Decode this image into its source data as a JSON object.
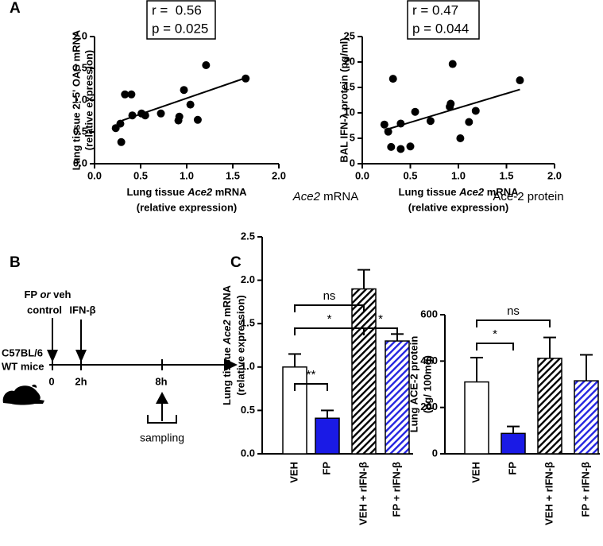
{
  "panel_labels": [
    "A",
    "B",
    "C"
  ],
  "timeline": {
    "treatment": [
      "FP ",
      "or",
      " veh"
    ],
    "treatment_line2": "control",
    "second": "IFN-β",
    "strain": "C57BL/6",
    "strain_line2": "WT mice",
    "times": [
      "0",
      "2h",
      "8h"
    ],
    "sampling": "sampling"
  },
  "chart_data": [
    {
      "type": "scatter",
      "stats": [
        "r =  0.56",
        "p = 0.025"
      ],
      "xlabel": [
        [
          "Lung tissue ",
          "Ace2",
          " mRNA"
        ],
        "(relative expression)"
      ],
      "ylabel": [
        "Lung tissue 2'-5' OAS mRNA",
        "(relative expression)"
      ],
      "x": [
        0.23,
        0.28,
        0.29,
        0.33,
        0.4,
        0.41,
        0.51,
        0.55,
        0.72,
        0.91,
        0.92,
        0.97,
        1.04,
        1.12,
        1.21,
        1.64
      ],
      "values": [
        0.56,
        0.63,
        0.34,
        1.09,
        1.09,
        0.76,
        0.79,
        0.76,
        0.79,
        0.68,
        0.74,
        1.16,
        0.93,
        0.69,
        1.55,
        1.34
      ],
      "color": "#000000",
      "trend_line": {
        "x": [
          0.3,
          1.64
        ],
        "y": [
          0.68,
          1.35
        ]
      },
      "xlim": [
        0,
        2
      ],
      "ylim": [
        0,
        2
      ],
      "xticks": [
        {
          "value": 0,
          "label": "0.0"
        },
        0.5,
        {
          "value": 1,
          "label": "1.0"
        },
        1.5,
        {
          "value": 2,
          "label": "2.0"
        }
      ],
      "yticks": [
        {
          "value": 0,
          "label": "0.0"
        },
        0.5,
        {
          "value": 1,
          "label": "1.0"
        },
        1.5,
        {
          "value": 2,
          "label": "2.0"
        }
      ]
    },
    {
      "type": "scatter",
      "stats": [
        "r = 0.47",
        "p = 0.044"
      ],
      "xlabel": [
        [
          "Lung tissue ",
          "Ace2",
          " mRNA"
        ],
        "(relative expression)"
      ],
      "ylabel": [
        "BAL IFN-λ protein (pg/ml)"
      ],
      "x": [
        0.23,
        0.27,
        0.3,
        0.32,
        0.4,
        0.4,
        0.5,
        0.55,
        0.71,
        0.91,
        0.92,
        0.94,
        1.02,
        1.11,
        1.18,
        1.64
      ],
      "values": [
        7.7,
        6.3,
        3.3,
        16.7,
        7.9,
        2.9,
        3.4,
        10.2,
        8.4,
        11.2,
        11.8,
        19.6,
        5.0,
        8.2,
        10.4,
        16.4
      ],
      "color": "#000000",
      "trend_line": {
        "x": [
          0.23,
          1.64
        ],
        "y": [
          6.6,
          14.6
        ]
      },
      "xlim": [
        0,
        2
      ],
      "ylim": [
        0,
        25
      ],
      "xticks": [
        {
          "value": 0,
          "label": "0.0"
        },
        0.5,
        {
          "value": 1,
          "label": "1.0"
        },
        1.5,
        {
          "value": 2,
          "label": "2.0"
        }
      ],
      "yticks": [
        0,
        5,
        10,
        15,
        20,
        25
      ]
    },
    {
      "type": "bar",
      "title": [
        "Ace2",
        " mRNA"
      ],
      "ylabel": [
        [
          "Lung tissue ",
          "Ace2",
          " mRNA"
        ],
        "(relative expression)"
      ],
      "categories": [
        "VEH",
        "FP",
        "VEH + rIFN-β",
        "FP + rIFN-β"
      ],
      "values": [
        1.0,
        0.41,
        1.9,
        1.3
      ],
      "errors": [
        0.15,
        0.09,
        0.22,
        0.08
      ],
      "colors": [
        "#ffffff",
        "#1a1ae6",
        "#000000",
        "#2424e0"
      ],
      "hatch": [
        false,
        false,
        true,
        true
      ],
      "annotations": [
        {
          "text": "ns",
          "between": [
            0,
            2
          ]
        },
        {
          "text": "*",
          "between": [
            0,
            2
          ]
        },
        {
          "text": "*",
          "between": [
            2,
            3
          ]
        },
        {
          "text": "**",
          "between": [
            0,
            1
          ]
        }
      ],
      "ylim": [
        0,
        2.5
      ],
      "yticks": [
        {
          "value": 0,
          "label": "0.0"
        },
        0.5,
        {
          "value": 1,
          "label": "1.0"
        },
        1.5,
        {
          "value": 2,
          "label": "2.0"
        },
        2.5
      ]
    },
    {
      "type": "bar",
      "title": [
        "Ace-2 protein"
      ],
      "ylabel": [
        "Lung ACE-2 protein",
        "(pg/ 100mg)"
      ],
      "categories": [
        "VEH",
        "FP",
        "VEH + rIFN-β",
        "FP + rIFN-β"
      ],
      "values": [
        310,
        88,
        412,
        315
      ],
      "errors": [
        105,
        30,
        90,
        112
      ],
      "colors": [
        "#ffffff",
        "#1a1ae6",
        "#000000",
        "#2424e0"
      ],
      "hatch": [
        false,
        false,
        true,
        true
      ],
      "annotations": [
        {
          "text": "ns",
          "between": [
            0,
            2
          ]
        },
        {
          "text": "*",
          "between": [
            0,
            1
          ]
        }
      ],
      "ylim": [
        0,
        600
      ],
      "yticks": [
        0,
        200,
        400,
        600
      ]
    }
  ]
}
